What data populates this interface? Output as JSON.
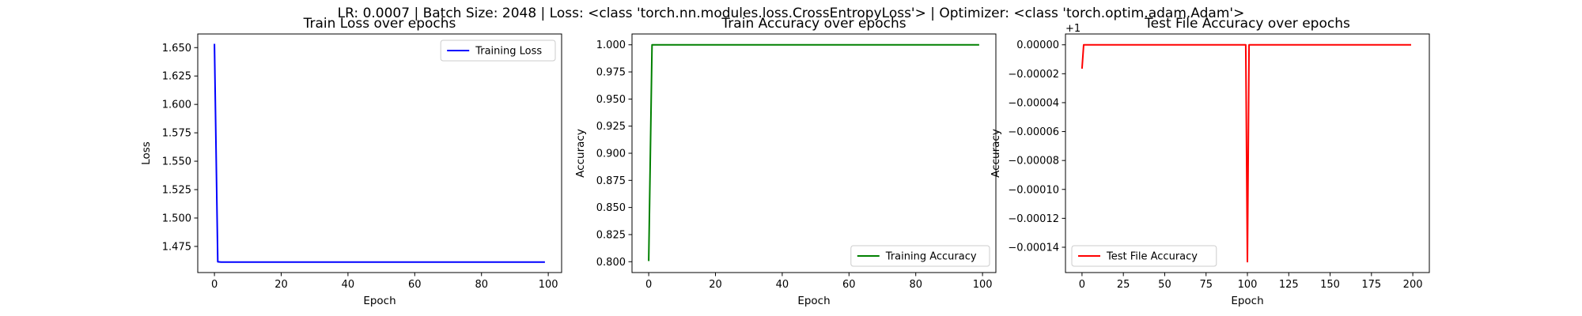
{
  "suptitle": "LR: 0.0007 | Batch Size: 2048 | Loss: <class 'torch.nn.modules.loss.CrossEntropyLoss'> | Optimizer: <class 'torch.optim.adam.Adam'>",
  "chart_data": [
    {
      "type": "line",
      "title": "Train Loss over epochs",
      "xlabel": "Epoch",
      "ylabel": "Loss",
      "xlim": [
        -5,
        104
      ],
      "ylim": [
        1.452,
        1.662
      ],
      "x_ticks": [
        0,
        20,
        40,
        60,
        80,
        100
      ],
      "x_tick_labels": [
        "0",
        "20",
        "40",
        "60",
        "80",
        "100"
      ],
      "y_ticks": [
        1.475,
        1.5,
        1.525,
        1.55,
        1.575,
        1.6,
        1.625,
        1.65
      ],
      "y_tick_labels": [
        "1.475",
        "1.500",
        "1.525",
        "1.550",
        "1.575",
        "1.600",
        "1.625",
        "1.650"
      ],
      "offset_text": "",
      "legend": {
        "position": "upper right"
      },
      "grid": false,
      "series": [
        {
          "name": "Training Loss",
          "color": "#0000ff",
          "x": [
            0,
            1,
            2,
            99
          ],
          "y": [
            1.6533,
            1.4615,
            1.4612,
            1.4612
          ]
        }
      ]
    },
    {
      "type": "line",
      "title": "Train Accuracy over epochs",
      "xlabel": "Epoch",
      "ylabel": "Accuracy",
      "xlim": [
        -5,
        104
      ],
      "ylim": [
        0.79,
        1.01
      ],
      "x_ticks": [
        0,
        20,
        40,
        60,
        80,
        100
      ],
      "x_tick_labels": [
        "0",
        "20",
        "40",
        "60",
        "80",
        "100"
      ],
      "y_ticks": [
        0.8,
        0.825,
        0.85,
        0.875,
        0.9,
        0.925,
        0.95,
        0.975,
        1.0
      ],
      "y_tick_labels": [
        "0.800",
        "0.825",
        "0.850",
        "0.875",
        "0.900",
        "0.925",
        "0.950",
        "0.975",
        "1.000"
      ],
      "offset_text": "",
      "legend": {
        "position": "lower right"
      },
      "grid": false,
      "series": [
        {
          "name": "Training Accuracy",
          "color": "#008000",
          "x": [
            0,
            1,
            99
          ],
          "y": [
            0.8006,
            1.0,
            1.0
          ]
        }
      ]
    },
    {
      "type": "line",
      "title": "Test File Accuracy over epochs",
      "xlabel": "Epoch",
      "ylabel": "Accuracy",
      "xlim": [
        -10,
        210
      ],
      "ylim": [
        -0.0001575,
        7.5e-06
      ],
      "x_ticks": [
        0,
        25,
        50,
        75,
        100,
        125,
        150,
        175,
        200
      ],
      "x_tick_labels": [
        "0",
        "25",
        "50",
        "75",
        "100",
        "125",
        "150",
        "175",
        "200"
      ],
      "y_ticks": [
        -0.00014,
        -0.00012,
        -0.0001,
        -8e-05,
        -6e-05,
        -4e-05,
        -2e-05,
        0
      ],
      "y_tick_labels": [
        "−0.00014",
        "−0.00012",
        "−0.00010",
        "−0.00008",
        "−0.00006",
        "−0.00004",
        "−0.00002",
        "0.00000"
      ],
      "offset_text": "+1",
      "legend": {
        "position": "lower left"
      },
      "grid": false,
      "series": [
        {
          "name": "Test File Accuracy",
          "color": "#ff0000",
          "x": [
            0,
            1,
            99,
            100,
            101,
            199
          ],
          "y": [
            -1.65e-05,
            0,
            0,
            -0.00015,
            0,
            0
          ]
        }
      ]
    }
  ]
}
